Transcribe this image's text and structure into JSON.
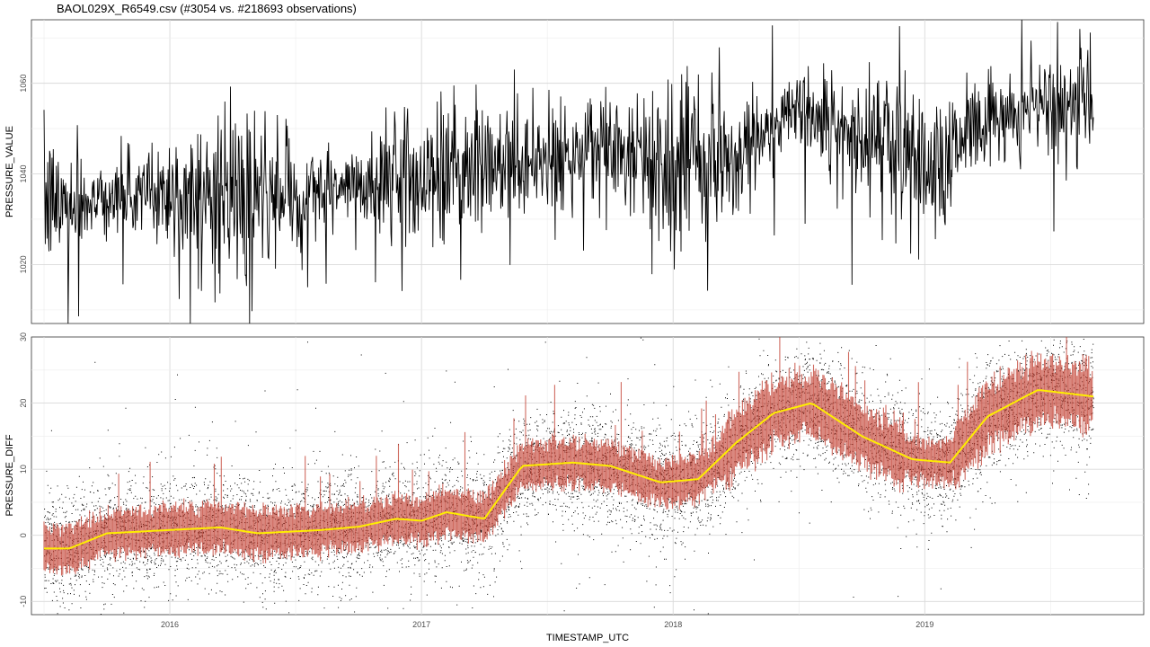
{
  "title": "BAOL029X_R6549.csv (#3054 vs. #218693 observations)",
  "chart_data": [
    {
      "type": "line",
      "panel": "top",
      "xlabel": "",
      "ylabel": "PRESSURE_VALUE",
      "xlim": [
        2015.45,
        2019.87
      ],
      "ylim": [
        1007,
        1074
      ],
      "y_ticks": [
        1020,
        1040,
        1060
      ],
      "y_tick_labels": [
        "1020",
        "1040",
        "1060"
      ],
      "grid": true,
      "line_color": "#000000",
      "series": [
        {
          "x": [
            2015.5,
            2015.75,
            2016.0,
            2016.25,
            2016.5,
            2016.75,
            2017.0,
            2017.25,
            2017.5,
            2017.75,
            2018.0,
            2018.25,
            2018.5,
            2018.75,
            2019.0,
            2019.25,
            2019.5,
            2019.67
          ],
          "values": [
            1033,
            1035,
            1036,
            1034,
            1035,
            1037,
            1040,
            1042,
            1043,
            1045,
            1041,
            1045,
            1055,
            1049,
            1042,
            1052,
            1055,
            1056
          ]
        }
      ]
    },
    {
      "type": "scatter",
      "panel": "bottom",
      "xlabel": "TIMESTAMP_UTC",
      "ylabel": "PRESSURE_DIFF",
      "xlim": [
        2015.45,
        2019.87
      ],
      "ylim": [
        -12,
        30
      ],
      "x_ticks": [
        2016,
        2017,
        2018,
        2019
      ],
      "x_tick_labels": [
        "2016",
        "2017",
        "2018",
        "2019"
      ],
      "y_ticks": [
        -10,
        0,
        10,
        20,
        30
      ],
      "y_tick_labels": [
        "-10",
        "0",
        "10",
        "20",
        "30"
      ],
      "grid": true,
      "point_color": "#000000",
      "band_color": "#c0392b",
      "smooth_color": "#ffee00",
      "series": [
        {
          "x": [
            2015.5,
            2015.6,
            2015.75,
            2016.0,
            2016.2,
            2016.35,
            2016.6,
            2016.75,
            2016.9,
            2017.0,
            2017.1,
            2017.25,
            2017.4,
            2017.6,
            2017.75,
            2017.95,
            2018.1,
            2018.25,
            2018.4,
            2018.55,
            2018.75,
            2018.95,
            2019.1,
            2019.25,
            2019.45,
            2019.67
          ],
          "values": [
            -2,
            -2,
            0.3,
            0.8,
            1.2,
            0.3,
            0.8,
            1.3,
            2.5,
            2.2,
            3.5,
            2.5,
            10.5,
            11,
            10.5,
            8,
            8.5,
            14,
            18.5,
            20,
            15,
            11.5,
            11,
            18,
            22,
            21
          ]
        }
      ]
    }
  ]
}
